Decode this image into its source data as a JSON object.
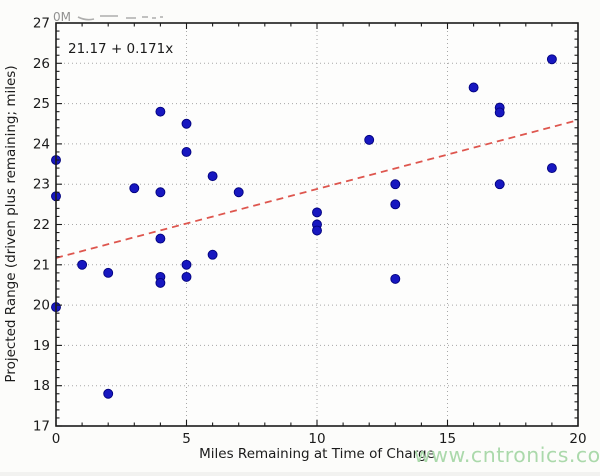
{
  "figure": {
    "background": "#fcfcfa",
    "plot_background": "#fdfdfc"
  },
  "watermark": {
    "text": "www.cntronics.com",
    "color": "#abd9ab"
  },
  "top_left_artifact": {
    "text": "0M"
  },
  "chart_data": {
    "type": "scatter",
    "title": "",
    "xlabel": "Miles Remaining at Time of Charge",
    "ylabel": "Projected Range (driven plus remaining; miles)",
    "xlim": [
      0,
      20
    ],
    "ylim": [
      17,
      27
    ],
    "xticks": [
      0,
      5,
      10,
      15,
      20
    ],
    "yticks": [
      17,
      18,
      19,
      20,
      21,
      22,
      23,
      24,
      25,
      26,
      27
    ],
    "x_minor_step": 1,
    "y_minor_step": 0.2,
    "grid": true,
    "grid_x": [
      5,
      10,
      15
    ],
    "grid_y": [
      18,
      19,
      20,
      21,
      22,
      23,
      24,
      25,
      26
    ],
    "legend": "none",
    "annotation": {
      "text": "21.17 + 0.171x",
      "x": 0.45,
      "y": 26.25
    },
    "points": [
      [
        0,
        23.6
      ],
      [
        0,
        22.7
      ],
      [
        0,
        19.95
      ],
      [
        1,
        21.0
      ],
      [
        2,
        20.8
      ],
      [
        2,
        17.8
      ],
      [
        3,
        22.9
      ],
      [
        4,
        24.8
      ],
      [
        4,
        22.8
      ],
      [
        4,
        21.65
      ],
      [
        4,
        20.7
      ],
      [
        4,
        20.55
      ],
      [
        5,
        24.5
      ],
      [
        5,
        23.8
      ],
      [
        5,
        21.0
      ],
      [
        5,
        20.7
      ],
      [
        6,
        23.2
      ],
      [
        6,
        21.25
      ],
      [
        7,
        22.8
      ],
      [
        10,
        22.3
      ],
      [
        10,
        22.0
      ],
      [
        10,
        21.85
      ],
      [
        12,
        24.1
      ],
      [
        13,
        23.0
      ],
      [
        13,
        22.5
      ],
      [
        13,
        20.65
      ],
      [
        16,
        25.4
      ],
      [
        17,
        24.9
      ],
      [
        17,
        24.78
      ],
      [
        17,
        23.0
      ],
      [
        19,
        26.1
      ],
      [
        19,
        23.4
      ]
    ],
    "trend": {
      "style": "dashed",
      "intercept": 21.17,
      "slope": 0.171,
      "equation": "21.17 + 0.171x"
    },
    "colors": {
      "point": "#1717c0",
      "point_edge": "#00007d",
      "trend": "#de564e",
      "grid": "#a8a8a8",
      "axis": "#1b1b1b",
      "text": "#1b1b1b"
    }
  }
}
